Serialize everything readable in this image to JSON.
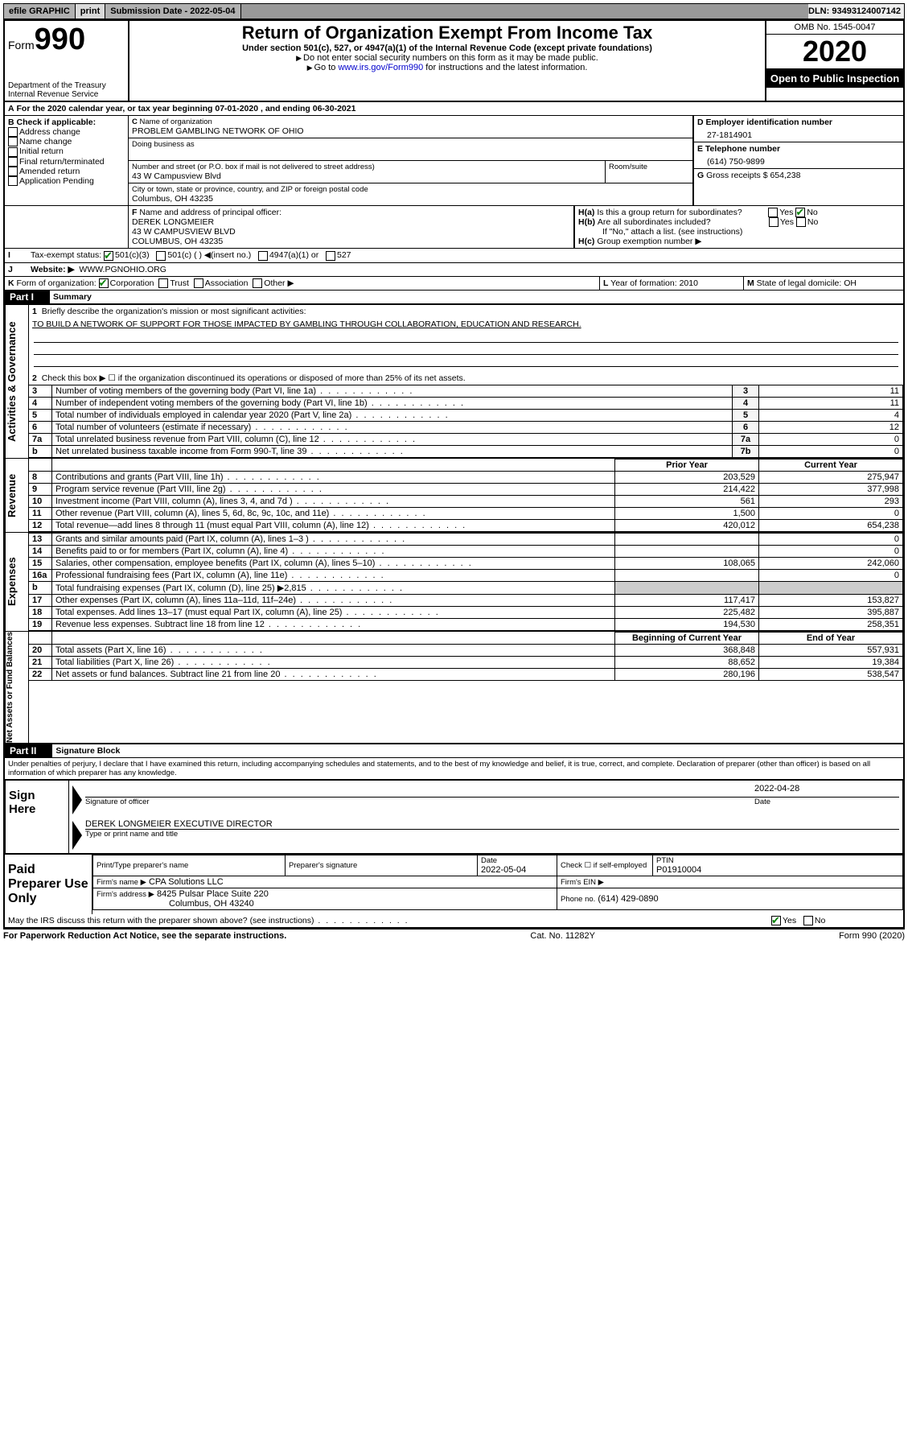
{
  "topbar": {
    "efile": "efile GRAPHIC",
    "print": "print",
    "sub_date_lbl": "Submission Date - 2022-05-04",
    "dln": "DLN: 93493124007142"
  },
  "header": {
    "form_label": "Form",
    "form_num": "990",
    "dept": "Department of the Treasury Internal Revenue Service",
    "title": "Return of Organization Exempt From Income Tax",
    "sub": "Under section 501(c), 527, or 4947(a)(1) of the Internal Revenue Code (except private foundations)",
    "note1": "Do not enter social security numbers on this form as it may be made public.",
    "note2_a": "Go to ",
    "note2_link": "www.irs.gov/Form990",
    "note2_b": " for instructions and the latest information.",
    "omb": "OMB No. 1545-0047",
    "year": "2020",
    "open": "Open to Public Inspection"
  },
  "A": {
    "text": "For the 2020 calendar year, or tax year beginning 07-01-2020   , and ending 06-30-2021"
  },
  "B": {
    "label": "Check if applicable:",
    "opts": [
      "Address change",
      "Name change",
      "Initial return",
      "Final return/terminated",
      "Amended return",
      "Application Pending"
    ]
  },
  "C": {
    "name_lbl": "Name of organization",
    "name": "PROBLEM GAMBLING NETWORK OF OHIO",
    "dba_lbl": "Doing business as",
    "addr_lbl": "Number and street (or P.O. box if mail is not delivered to street address)",
    "addr": "43 W Campusview Blvd",
    "room_lbl": "Room/suite",
    "city_lbl": "City or town, state or province, country, and ZIP or foreign postal code",
    "city": "Columbus, OH  43235"
  },
  "D": {
    "lbl": "Employer identification number",
    "val": "27-1814901"
  },
  "E": {
    "lbl": "Telephone number",
    "val": "(614) 750-9899"
  },
  "G": {
    "lbl": "Gross receipts $",
    "val": "654,238"
  },
  "F": {
    "lbl": "Name and address of principal officer:",
    "name": "DEREK LONGMEIER",
    "addr1": "43 W CAMPUSVIEW BLVD",
    "addr2": "COLUMBUS, OH  43235"
  },
  "H": {
    "a": "Is this a group return for subordinates?",
    "b": "Are all subordinates included?",
    "b2": "If \"No,\" attach a list. (see instructions)",
    "c": "Group exemption number ▶",
    "yes": "Yes",
    "no": "No"
  },
  "I": {
    "lbl": "Tax-exempt status:",
    "opts": [
      "501(c)(3)",
      "501(c) (   ) ◀(insert no.)",
      "4947(a)(1) or",
      "527"
    ]
  },
  "J": {
    "lbl": "Website: ▶",
    "val": "WWW.PGNOHIO.ORG"
  },
  "K": {
    "lbl": "Form of organization:",
    "opts": [
      "Corporation",
      "Trust",
      "Association",
      "Other ▶"
    ]
  },
  "L": {
    "lbl": "Year of formation:",
    "val": "2010"
  },
  "M": {
    "lbl": "State of legal domicile:",
    "val": "OH"
  },
  "partI": {
    "hdr": "Part I",
    "title": "Summary",
    "side_ag": "Activities & Governance",
    "side_rev": "Revenue",
    "side_exp": "Expenses",
    "side_na": "Net Assets or Fund Balances",
    "q1": "Briefly describe the organization's mission or most significant activities:",
    "mission": "TO BUILD A NETWORK OF SUPPORT FOR THOSE IMPACTED BY GAMBLING THROUGH COLLABORATION, EDUCATION AND RESEARCH.",
    "q2": "Check this box ▶ ☐  if the organization discontinued its operations or disposed of more than 25% of its net assets.",
    "rows_ag": [
      {
        "n": "3",
        "t": "Number of voting members of the governing body (Part VI, line 1a)",
        "c": "3",
        "v": "11"
      },
      {
        "n": "4",
        "t": "Number of independent voting members of the governing body (Part VI, line 1b)",
        "c": "4",
        "v": "11"
      },
      {
        "n": "5",
        "t": "Total number of individuals employed in calendar year 2020 (Part V, line 2a)",
        "c": "5",
        "v": "4"
      },
      {
        "n": "6",
        "t": "Total number of volunteers (estimate if necessary)",
        "c": "6",
        "v": "12"
      },
      {
        "n": "7a",
        "t": "Total unrelated business revenue from Part VIII, column (C), line 12",
        "c": "7a",
        "v": "0"
      },
      {
        "n": "b",
        "t": "Net unrelated business taxable income from Form 990-T, line 39",
        "c": "7b",
        "v": "0"
      }
    ],
    "col_py": "Prior Year",
    "col_cy": "Current Year",
    "col_bcy": "Beginning of Current Year",
    "col_eoy": "End of Year",
    "rows_rev": [
      {
        "n": "8",
        "t": "Contributions and grants (Part VIII, line 1h)",
        "py": "203,529",
        "cy": "275,947"
      },
      {
        "n": "9",
        "t": "Program service revenue (Part VIII, line 2g)",
        "py": "214,422",
        "cy": "377,998"
      },
      {
        "n": "10",
        "t": "Investment income (Part VIII, column (A), lines 3, 4, and 7d )",
        "py": "561",
        "cy": "293"
      },
      {
        "n": "11",
        "t": "Other revenue (Part VIII, column (A), lines 5, 6d, 8c, 9c, 10c, and 11e)",
        "py": "1,500",
        "cy": "0"
      },
      {
        "n": "12",
        "t": "Total revenue—add lines 8 through 11 (must equal Part VIII, column (A), line 12)",
        "py": "420,012",
        "cy": "654,238"
      }
    ],
    "rows_exp": [
      {
        "n": "13",
        "t": "Grants and similar amounts paid (Part IX, column (A), lines 1–3 )",
        "py": "",
        "cy": "0"
      },
      {
        "n": "14",
        "t": "Benefits paid to or for members (Part IX, column (A), line 4)",
        "py": "",
        "cy": "0"
      },
      {
        "n": "15",
        "t": "Salaries, other compensation, employee benefits (Part IX, column (A), lines 5–10)",
        "py": "108,065",
        "cy": "242,060"
      },
      {
        "n": "16a",
        "t": "Professional fundraising fees (Part IX, column (A), line 11e)",
        "py": "",
        "cy": "0"
      },
      {
        "n": "b",
        "t": "Total fundraising expenses (Part IX, column (D), line 25) ▶2,815",
        "py": "__shade__",
        "cy": "__shade__"
      },
      {
        "n": "17",
        "t": "Other expenses (Part IX, column (A), lines 11a–11d, 11f–24e)",
        "py": "117,417",
        "cy": "153,827"
      },
      {
        "n": "18",
        "t": "Total expenses. Add lines 13–17 (must equal Part IX, column (A), line 25)",
        "py": "225,482",
        "cy": "395,887"
      },
      {
        "n": "19",
        "t": "Revenue less expenses. Subtract line 18 from line 12",
        "py": "194,530",
        "cy": "258,351"
      }
    ],
    "rows_na": [
      {
        "n": "20",
        "t": "Total assets (Part X, line 16)",
        "py": "368,848",
        "cy": "557,931"
      },
      {
        "n": "21",
        "t": "Total liabilities (Part X, line 26)",
        "py": "88,652",
        "cy": "19,384"
      },
      {
        "n": "22",
        "t": "Net assets or fund balances. Subtract line 21 from line 20",
        "py": "280,196",
        "cy": "538,547"
      }
    ]
  },
  "partII": {
    "hdr": "Part II",
    "title": "Signature Block",
    "decl": "Under penalties of perjury, I declare that I have examined this return, including accompanying schedules and statements, and to the best of my knowledge and belief, it is true, correct, and complete. Declaration of preparer (other than officer) is based on all information of which preparer has any knowledge."
  },
  "sign": {
    "here": "Sign Here",
    "sig_lbl": "Signature of officer",
    "date_lbl": "Date",
    "date": "2022-04-28",
    "name": "DEREK LONGMEIER  EXECUTIVE DIRECTOR",
    "name_lbl": "Type or print name and title"
  },
  "paid": {
    "title": "Paid Preparer Use Only",
    "c1": "Print/Type preparer's name",
    "c2": "Preparer's signature",
    "c3": "Date",
    "c3v": "2022-05-04",
    "c4": "Check ☐ if self-employed",
    "c5": "PTIN",
    "c5v": "P01910004",
    "firm_lbl": "Firm's name    ▶",
    "firm": "CPA Solutions LLC",
    "ein_lbl": "Firm's EIN ▶",
    "addr_lbl": "Firm's address ▶",
    "addr1": "8425 Pulsar Place Suite 220",
    "addr2": "Columbus, OH  43240",
    "phone_lbl": "Phone no.",
    "phone": "(614) 429-0890",
    "discuss": "May the IRS discuss this return with the preparer shown above? (see instructions)"
  },
  "footer": {
    "left": "For Paperwork Reduction Act Notice, see the separate instructions.",
    "mid": "Cat. No. 11282Y",
    "right": "Form 990 (2020)"
  }
}
